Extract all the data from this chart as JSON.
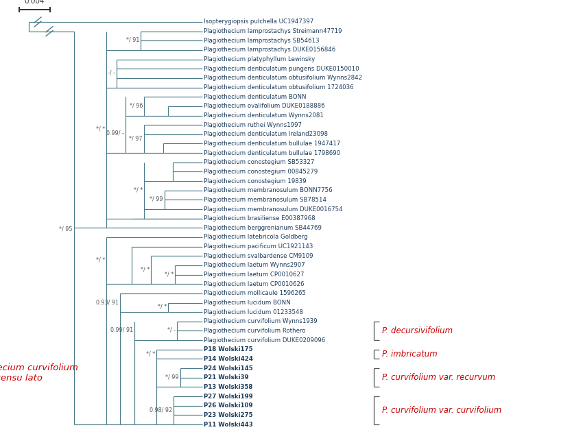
{
  "bg_color": "#ffffff",
  "tree_color": "#4a7a8a",
  "label_color": "#1a3a5c",
  "red_color": "#cc0000",
  "bracket_color": "#555555",
  "node_label_color": "#555555",
  "taxa": [
    "P11 Wolski443",
    "P23 Wolski275",
    "P26 Wolski109",
    "P27 Wolski199",
    "P13 Wolski358",
    "P21 Wolski39",
    "P24 Wolski145",
    "P14 Wolski424",
    "P18 Wolski175",
    "Plagiothecium curvifolium DUKE0209096",
    "Plagiothecium curvifolium Rothero",
    "Plagiothecium curvifolium Wynns1939",
    "Plagiothecium lucidum 01233548",
    "Plagiothecium lucidum BONN",
    "Plagiothecium mollicaule 1596265",
    "Plagiothecium laetum CP0010626",
    "Plagiothecium laetum CP0010627",
    "Plagiothecium laetum Wynns2907",
    "Plagiothecium svalbardense CM9109",
    "Plagiothecium pacificum UC1921143",
    "Plagiothecium latebricola Goldberg",
    "Plagiothecium berggrenianum SB44769",
    "Plagiothecium brasiliense E00387968",
    "Plagiothecium membranosulum DUKE0016754",
    "Plagiothecium membranosulum SB78514",
    "Plagiothecium membranosulum BONN7756",
    "Plagiothecium conostegium 19839",
    "Plagiothecium conostegium 00845279",
    "Plagiothecium conostegium SB53327",
    "Plagiothecium denticulatum bullulae 1798690",
    "Plagiothecium denticulatum bullulae 1947417",
    "Plagiothecium denticulatum Ireland23098",
    "Plagiothecium ruthei Wynns1997",
    "Plagiothecium denticulatum Wynns2081",
    "Plagiothecium ovalifolium DUKE0188886",
    "Plagiothecium denticulatum BONN",
    "Plagiothecium denticulatum obtusifolium 1724036",
    "Plagiothecium denticulatum obtusifolium Wynns2842",
    "Plagiothecium denticulatum pungens DUKE0150010",
    "Plagiothecium platyphyllum Lewinsky",
    "Plagiothecium lamprostachys DUKE0156846",
    "Plagiothecium lamprostachys SB54613",
    "Plagiothecium lamprostachys Streimann47719",
    "Isopterygiopsis pulchella UC1947397"
  ],
  "bold_indices": [
    0,
    1,
    2,
    3,
    4,
    5,
    6,
    7,
    8
  ],
  "bracket_groups": [
    {
      "i1": 0,
      "i2": 3,
      "label": "P. curvifolium var. curvifolium"
    },
    {
      "i1": 4,
      "i2": 6,
      "label": "P. curvifolium var. recurvum"
    },
    {
      "i1": 7,
      "i2": 8,
      "label": "P. imbricatum"
    },
    {
      "i1": 9,
      "i2": 11,
      "label": "P. decursivifolium"
    }
  ],
  "left_label_line1": "Plagiothecium curvifolium",
  "left_label_line2": "sensu lato",
  "scale_label": "0.004"
}
